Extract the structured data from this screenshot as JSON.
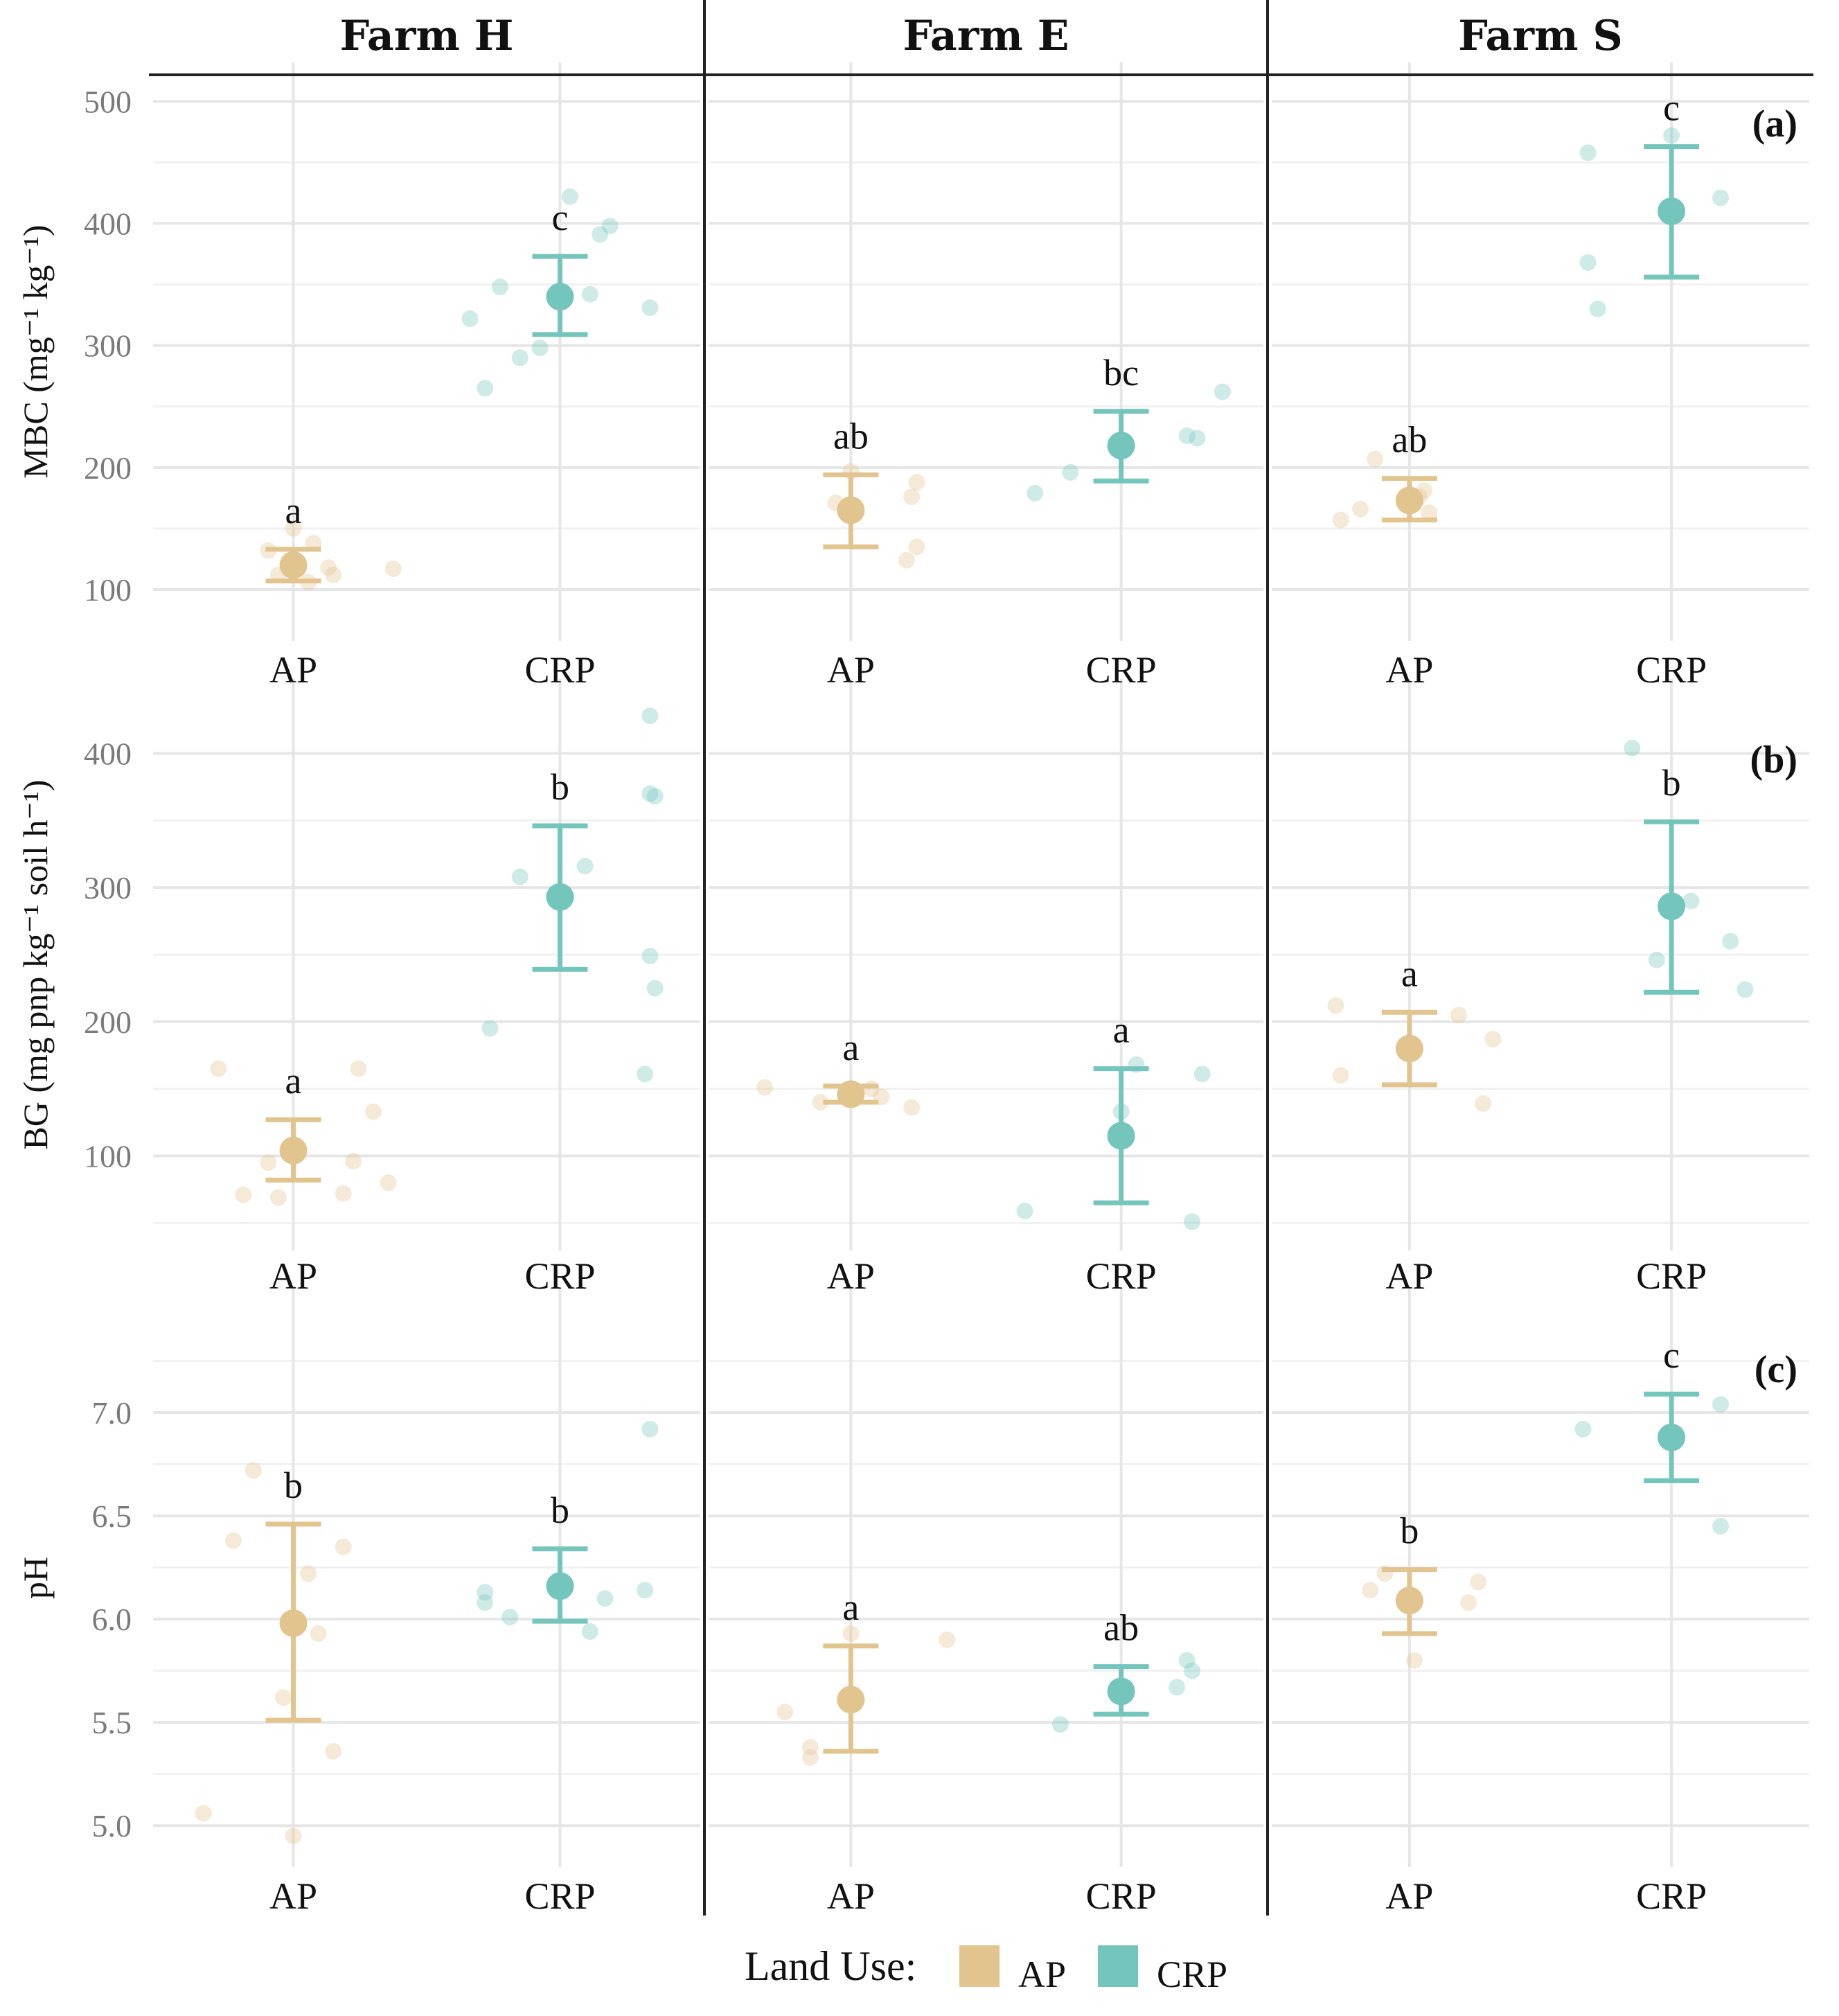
{
  "chart_data": {
    "type": "scatter",
    "facets": [
      "Farm H",
      "Farm E",
      "Farm S"
    ],
    "categories": [
      "AP",
      "CRP"
    ],
    "colors": {
      "AP": "#e2c48e",
      "CRP": "#74c5bc"
    },
    "legend": {
      "title": "Land Use:",
      "labels": [
        "AP",
        "CRP"
      ],
      "placement": "bottom"
    },
    "panels": [
      {
        "tag": "(a)",
        "ylabel": "MBC (mg⁻¹ kg⁻¹)",
        "ylim": [
          75,
          515
        ],
        "yticks": [
          100,
          200,
          300,
          400,
          500
        ],
        "ytick_labels": [
          "100",
          "200",
          "300",
          "400",
          "500"
        ],
        "minor_ticks": [
          150,
          250,
          350,
          450
        ],
        "groups": [
          {
            "farm": "Farm H",
            "use": "AP",
            "mean": 120,
            "lo": 107,
            "hi": 133,
            "letter": "a",
            "points": [
              [
                0.0,
                150
              ],
              [
                0.04,
                138
              ],
              [
                -0.05,
                132
              ],
              [
                0.07,
                118
              ],
              [
                -0.03,
                112
              ],
              [
                0.08,
                112
              ],
              [
                0.03,
                106
              ],
              [
                0.2,
                117
              ]
            ]
          },
          {
            "farm": "Farm H",
            "use": "CRP",
            "mean": 340,
            "lo": 309,
            "hi": 373,
            "letter": "c",
            "points": [
              [
                0.02,
                422
              ],
              [
                0.1,
                398
              ],
              [
                0.08,
                391
              ],
              [
                -0.12,
                348
              ],
              [
                0.06,
                342
              ],
              [
                -0.18,
                322
              ],
              [
                0.18,
                331
              ],
              [
                -0.04,
                298
              ],
              [
                -0.08,
                290
              ],
              [
                -0.15,
                265
              ]
            ]
          },
          {
            "farm": "Farm E",
            "use": "AP",
            "mean": 165,
            "lo": 135,
            "hi": 194,
            "letter": "ab",
            "points": [
              [
                0.0,
                197
              ],
              [
                0.13,
                188
              ],
              [
                0.12,
                176
              ],
              [
                0.13,
                135
              ],
              [
                0.11,
                124
              ],
              [
                -0.03,
                171
              ]
            ]
          },
          {
            "farm": "Farm E",
            "use": "CRP",
            "mean": 218,
            "lo": 189,
            "hi": 246,
            "letter": "bc",
            "points": [
              [
                0.2,
                262
              ],
              [
                0.13,
                226
              ],
              [
                0.15,
                224
              ],
              [
                -0.1,
                196
              ],
              [
                -0.17,
                179
              ]
            ]
          },
          {
            "farm": "Farm S",
            "use": "AP",
            "mean": 173,
            "lo": 157,
            "hi": 191,
            "letter": "ab",
            "points": [
              [
                -0.07,
                207
              ],
              [
                0.03,
                181
              ],
              [
                -0.1,
                166
              ],
              [
                -0.14,
                157
              ],
              [
                0.04,
                163
              ],
              [
                0.02,
                176
              ]
            ]
          },
          {
            "farm": "Farm S",
            "use": "CRP",
            "mean": 410,
            "lo": 356,
            "hi": 463,
            "letter": "c",
            "points": [
              [
                -0.17,
                458
              ],
              [
                0.0,
                472
              ],
              [
                0.1,
                421
              ],
              [
                -0.17,
                368
              ],
              [
                -0.15,
                330
              ]
            ]
          }
        ]
      },
      {
        "tag": "(b)",
        "ylabel": "BG (mg pnp kg⁻¹ soil h⁻¹)",
        "ylim": [
          45,
          440
        ],
        "yticks": [
          100,
          200,
          300,
          400
        ],
        "ytick_labels": [
          "100",
          "200",
          "300",
          "400"
        ],
        "minor_ticks": [
          50,
          150,
          250,
          350
        ],
        "groups": [
          {
            "farm": "Farm H",
            "use": "AP",
            "mean": 104,
            "lo": 82,
            "hi": 127,
            "letter": "a",
            "points": [
              [
                -0.15,
                165
              ],
              [
                0.13,
                165
              ],
              [
                0.16,
                133
              ],
              [
                0.12,
                96
              ],
              [
                -0.05,
                95
              ],
              [
                0.19,
                80
              ],
              [
                -0.1,
                71
              ],
              [
                0.1,
                72
              ],
              [
                -0.03,
                69
              ]
            ]
          },
          {
            "farm": "Farm H",
            "use": "CRP",
            "mean": 293,
            "lo": 239,
            "hi": 346,
            "letter": "b",
            "points": [
              [
                0.18,
                428
              ],
              [
                0.18,
                370
              ],
              [
                0.19,
                368
              ],
              [
                0.05,
                316
              ],
              [
                -0.08,
                308
              ],
              [
                0.18,
                249
              ],
              [
                0.19,
                225
              ],
              [
                -0.14,
                195
              ],
              [
                0.17,
                161
              ]
            ]
          },
          {
            "farm": "Farm E",
            "use": "AP",
            "mean": 146,
            "lo": 140,
            "hi": 152,
            "letter": "a",
            "points": [
              [
                -0.17,
                151
              ],
              [
                0.04,
                150
              ],
              [
                0.06,
                144
              ],
              [
                -0.06,
                140
              ],
              [
                0.12,
                136
              ]
            ]
          },
          {
            "farm": "Farm E",
            "use": "CRP",
            "mean": 115,
            "lo": 65,
            "hi": 165,
            "letter": "a",
            "points": [
              [
                0.03,
                168
              ],
              [
                0.16,
                161
              ],
              [
                0.0,
                133
              ],
              [
                -0.19,
                59
              ],
              [
                0.14,
                51
              ]
            ]
          },
          {
            "farm": "Farm S",
            "use": "AP",
            "mean": 180,
            "lo": 153,
            "hi": 207,
            "letter": "a",
            "points": [
              [
                -0.15,
                212
              ],
              [
                0.1,
                205
              ],
              [
                0.17,
                187
              ],
              [
                -0.14,
                160
              ],
              [
                0.15,
                139
              ]
            ]
          },
          {
            "farm": "Farm S",
            "use": "CRP",
            "mean": 286,
            "lo": 222,
            "hi": 349,
            "letter": "b",
            "points": [
              [
                -0.08,
                404
              ],
              [
                0.04,
                290
              ],
              [
                0.12,
                260
              ],
              [
                -0.03,
                246
              ],
              [
                0.15,
                224
              ]
            ]
          }
        ]
      },
      {
        "tag": "(c)",
        "ylabel": "pH",
        "ylim": [
          4.9,
          7.5
        ],
        "yticks": [
          5.0,
          5.5,
          6.0,
          6.5,
          7.0
        ],
        "ytick_labels": [
          "5.0",
          "5.5",
          "6.0",
          "6.5",
          "7.0"
        ],
        "minor_ticks": [
          5.25,
          5.75,
          6.25,
          6.75,
          7.25
        ],
        "groups": [
          {
            "farm": "Farm H",
            "use": "AP",
            "mean": 5.98,
            "lo": 5.51,
            "hi": 6.46,
            "letter": "b",
            "points": [
              [
                -0.08,
                6.72
              ],
              [
                -0.12,
                6.38
              ],
              [
                0.1,
                6.35
              ],
              [
                0.03,
                6.22
              ],
              [
                0.05,
                5.93
              ],
              [
                -0.02,
                5.62
              ],
              [
                0.08,
                5.36
              ],
              [
                -0.18,
                5.06
              ],
              [
                0.0,
                4.95
              ]
            ]
          },
          {
            "farm": "Farm H",
            "use": "CRP",
            "mean": 6.16,
            "lo": 5.99,
            "hi": 6.34,
            "letter": "b",
            "points": [
              [
                0.18,
                6.92
              ],
              [
                -0.15,
                6.13
              ],
              [
                0.09,
                6.1
              ],
              [
                -0.15,
                6.08
              ],
              [
                0.17,
                6.14
              ],
              [
                -0.1,
                6.01
              ],
              [
                0.06,
                5.94
              ]
            ]
          },
          {
            "farm": "Farm E",
            "use": "AP",
            "mean": 5.61,
            "lo": 5.36,
            "hi": 5.87,
            "letter": "a",
            "points": [
              [
                0.0,
                5.93
              ],
              [
                0.19,
                5.9
              ],
              [
                -0.13,
                5.55
              ],
              [
                -0.08,
                5.38
              ],
              [
                -0.08,
                5.33
              ]
            ]
          },
          {
            "farm": "Farm E",
            "use": "CRP",
            "mean": 5.65,
            "lo": 5.54,
            "hi": 5.77,
            "letter": "ab",
            "points": [
              [
                0.13,
                5.8
              ],
              [
                0.14,
                5.75
              ],
              [
                0.11,
                5.67
              ],
              [
                -0.12,
                5.49
              ]
            ]
          },
          {
            "farm": "Farm S",
            "use": "AP",
            "mean": 6.09,
            "lo": 5.93,
            "hi": 6.24,
            "letter": "b",
            "points": [
              [
                -0.05,
                6.22
              ],
              [
                0.14,
                6.18
              ],
              [
                0.12,
                6.08
              ],
              [
                -0.08,
                6.14
              ],
              [
                0.01,
                5.8
              ]
            ]
          },
          {
            "farm": "Farm S",
            "use": "CRP",
            "mean": 6.88,
            "lo": 6.67,
            "hi": 7.09,
            "letter": "c",
            "points": [
              [
                -0.18,
                6.92
              ],
              [
                0.1,
                7.04
              ],
              [
                0.1,
                6.45
              ]
            ]
          }
        ]
      }
    ]
  }
}
